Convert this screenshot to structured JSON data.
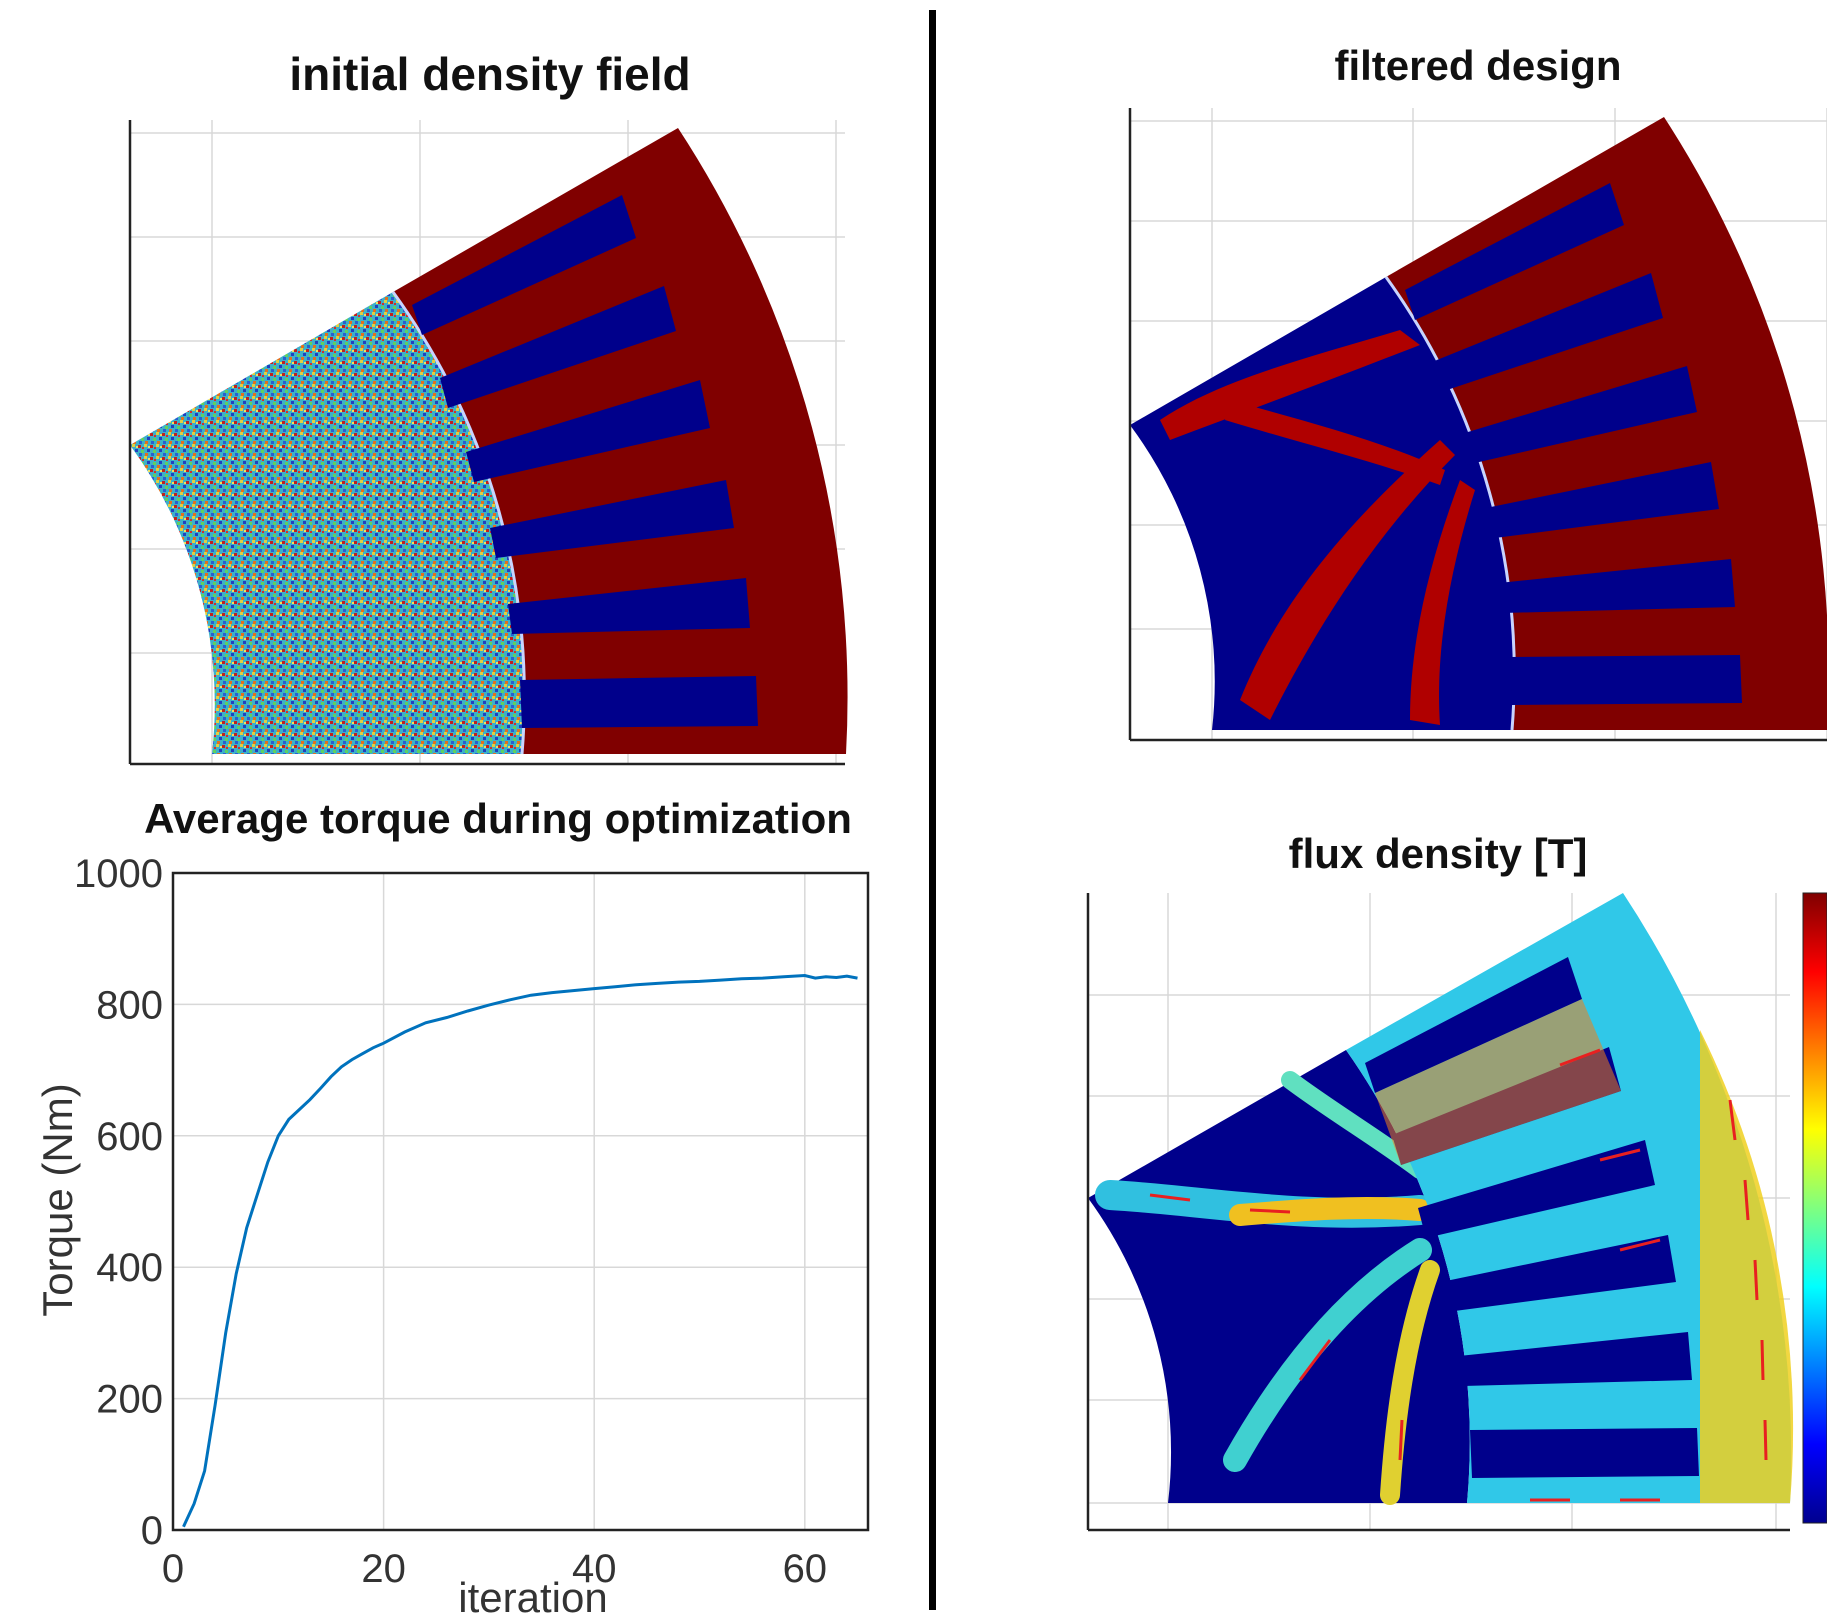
{
  "panels": {
    "initial": {
      "title": "initial density field"
    },
    "filtered": {
      "title": "filtered design"
    },
    "flux": {
      "title": "flux density [T]"
    }
  },
  "chart_data": [
    {
      "type": "line",
      "title": "Average torque during optimization",
      "xlabel": "iteration",
      "ylabel": "Torque (Nm)",
      "xlim": [
        0,
        66
      ],
      "ylim": [
        0,
        1000
      ],
      "xticks": [
        0,
        20,
        40,
        60
      ],
      "yticks": [
        0,
        200,
        400,
        600,
        800,
        1000
      ],
      "grid": true,
      "series": [
        {
          "color": "#0072bd",
          "x": [
            1,
            2,
            3,
            4,
            5,
            6,
            7,
            8,
            9,
            10,
            11,
            12,
            13,
            14,
            15,
            16,
            17,
            18,
            19,
            20,
            22,
            24,
            26,
            28,
            30,
            32,
            34,
            36,
            38,
            40,
            42,
            44,
            46,
            48,
            50,
            52,
            54,
            56,
            58,
            60,
            61,
            62,
            63,
            64,
            65
          ],
          "y": [
            5,
            40,
            90,
            190,
            300,
            390,
            460,
            510,
            560,
            600,
            625,
            640,
            655,
            672,
            690,
            705,
            716,
            725,
            734,
            741,
            758,
            772,
            780,
            790,
            799,
            807,
            814,
            818,
            821,
            824,
            827,
            830,
            832,
            834,
            835,
            837,
            839,
            840,
            842,
            844,
            840,
            842,
            841,
            843,
            840
          ]
        }
      ]
    },
    {
      "type": "heatmap",
      "title": "initial density field",
      "content": "random density distribution in rotor region; stator iron with 6 slots",
      "colors": {
        "iron": "#800000",
        "air": "#00008b"
      }
    },
    {
      "type": "heatmap",
      "title": "filtered design",
      "colors": {
        "iron": "#800000",
        "air": "#00008b"
      }
    },
    {
      "type": "heatmap",
      "title": "flux density [T]",
      "colormap": "jet",
      "vector_color": "#e82020"
    }
  ]
}
